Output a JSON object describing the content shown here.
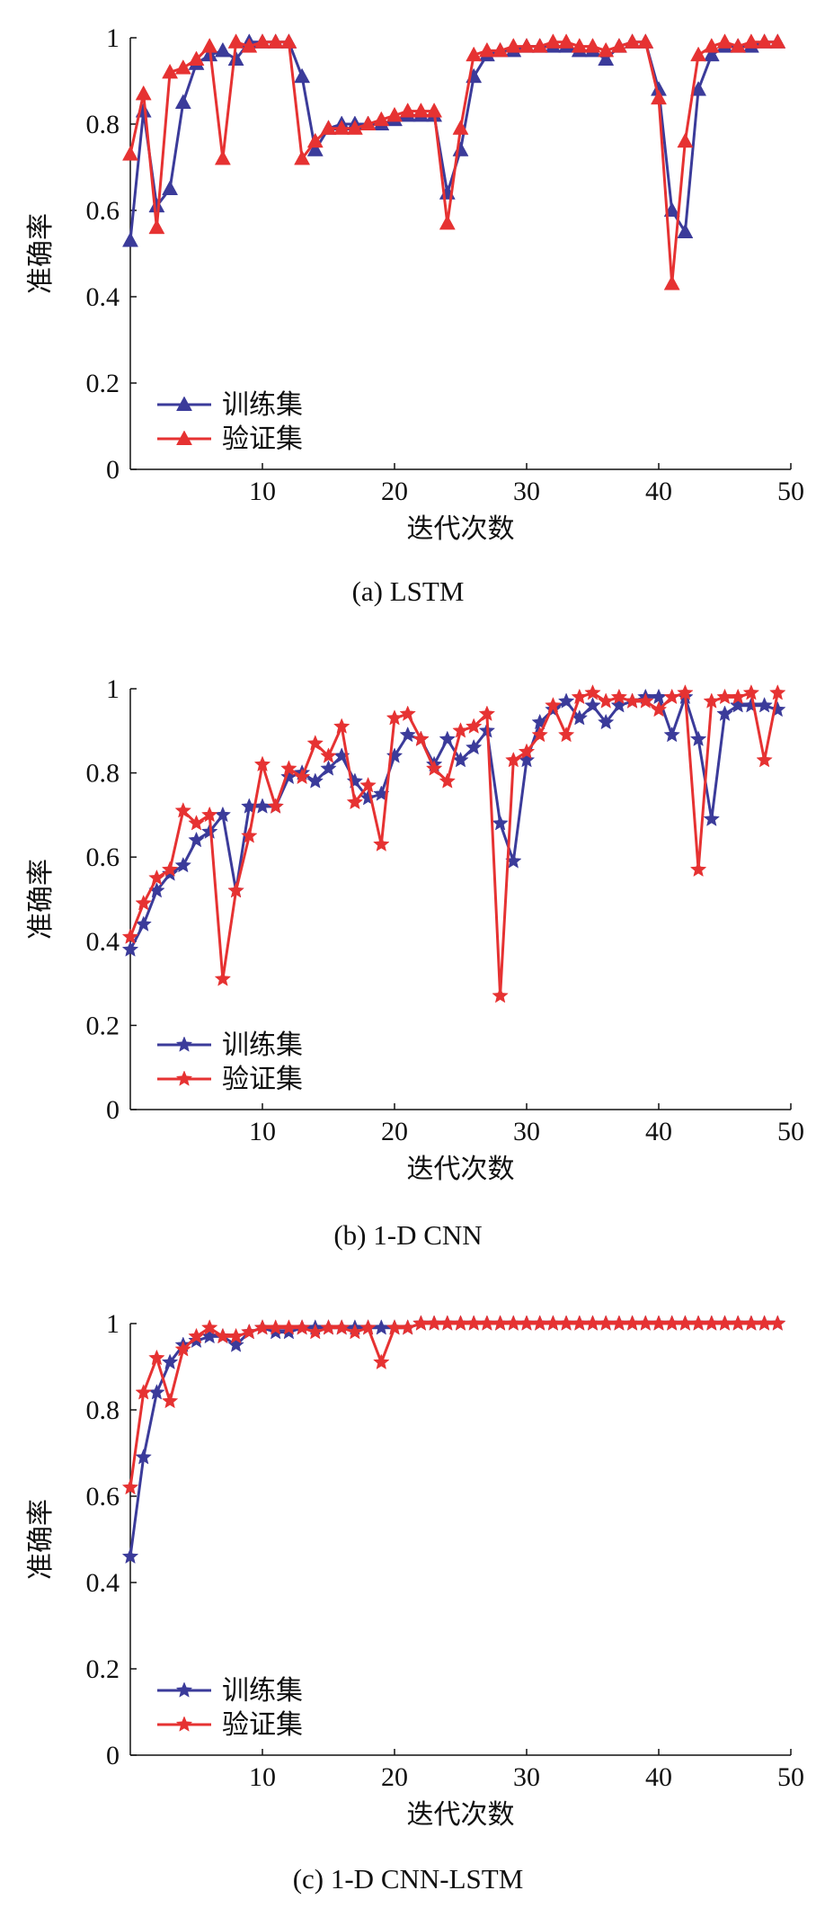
{
  "chart_data": [
    {
      "type": "line",
      "caption": "(a) LSTM",
      "xlabel": "迭代次数",
      "ylabel": "准确率",
      "xlim": [
        0,
        50
      ],
      "ylim": [
        0,
        1
      ],
      "xticks": [
        10,
        20,
        30,
        40,
        50
      ],
      "yticks": [
        0,
        0.2,
        0.4,
        0.6,
        0.8,
        1
      ],
      "marker": "triangle",
      "legend_position": "bottom-left",
      "x": [
        0,
        1,
        2,
        3,
        4,
        5,
        6,
        7,
        8,
        9,
        10,
        11,
        12,
        13,
        14,
        15,
        16,
        17,
        18,
        19,
        20,
        21,
        22,
        23,
        24,
        25,
        26,
        27,
        28,
        29,
        30,
        31,
        32,
        33,
        34,
        35,
        36,
        37,
        38,
        39,
        40,
        41,
        42,
        43,
        44,
        45,
        46,
        47,
        48,
        49
      ],
      "series": [
        {
          "name": "训练集",
          "color": "#3b3b9a",
          "values": [
            0.53,
            0.83,
            0.61,
            0.65,
            0.85,
            0.94,
            0.96,
            0.97,
            0.95,
            0.99,
            0.99,
            0.99,
            0.99,
            0.91,
            0.74,
            0.79,
            0.8,
            0.8,
            0.8,
            0.8,
            0.81,
            0.82,
            0.82,
            0.82,
            0.64,
            0.74,
            0.91,
            0.96,
            0.97,
            0.97,
            0.98,
            0.98,
            0.98,
            0.98,
            0.97,
            0.97,
            0.95,
            0.98,
            0.99,
            0.99,
            0.88,
            0.6,
            0.55,
            0.88,
            0.96,
            0.98,
            0.98,
            0.98,
            0.99,
            0.99
          ]
        },
        {
          "name": "验证集",
          "color": "#e63232",
          "values": [
            0.73,
            0.87,
            0.56,
            0.92,
            0.93,
            0.95,
            0.98,
            0.72,
            0.99,
            0.98,
            0.99,
            0.99,
            0.99,
            0.72,
            0.76,
            0.79,
            0.79,
            0.79,
            0.8,
            0.81,
            0.82,
            0.83,
            0.83,
            0.83,
            0.57,
            0.79,
            0.96,
            0.97,
            0.97,
            0.98,
            0.98,
            0.98,
            0.99,
            0.99,
            0.98,
            0.98,
            0.97,
            0.98,
            0.99,
            0.99,
            0.86,
            0.43,
            0.76,
            0.96,
            0.98,
            0.99,
            0.98,
            0.99,
            0.99,
            0.99
          ]
        }
      ]
    },
    {
      "type": "line",
      "caption": "(b) 1-D CNN",
      "xlabel": "迭代次数",
      "ylabel": "准确率",
      "xlim": [
        0,
        50
      ],
      "ylim": [
        0,
        1
      ],
      "xticks": [
        10,
        20,
        30,
        40,
        50
      ],
      "yticks": [
        0,
        0.2,
        0.4,
        0.6,
        0.8,
        1
      ],
      "marker": "star",
      "legend_position": "bottom-left",
      "x": [
        0,
        1,
        2,
        3,
        4,
        5,
        6,
        7,
        8,
        9,
        10,
        11,
        12,
        13,
        14,
        15,
        16,
        17,
        18,
        19,
        20,
        21,
        22,
        23,
        24,
        25,
        26,
        27,
        28,
        29,
        30,
        31,
        32,
        33,
        34,
        35,
        36,
        37,
        38,
        39,
        40,
        41,
        42,
        43,
        44,
        45,
        46,
        47,
        48,
        49
      ],
      "series": [
        {
          "name": "训练集",
          "color": "#3b3b9a",
          "values": [
            0.38,
            0.44,
            0.52,
            0.56,
            0.58,
            0.64,
            0.66,
            0.7,
            0.52,
            0.72,
            0.72,
            0.72,
            0.79,
            0.8,
            0.78,
            0.81,
            0.84,
            0.78,
            0.74,
            0.75,
            0.84,
            0.89,
            0.88,
            0.82,
            0.88,
            0.83,
            0.86,
            0.9,
            0.68,
            0.59,
            0.83,
            0.92,
            0.95,
            0.97,
            0.93,
            0.96,
            0.92,
            0.96,
            0.97,
            0.98,
            0.98,
            0.89,
            0.98,
            0.88,
            0.69,
            0.94,
            0.96,
            0.96,
            0.96,
            0.95
          ]
        },
        {
          "name": "验证集",
          "color": "#e63232",
          "values": [
            0.41,
            0.49,
            0.55,
            0.57,
            0.71,
            0.68,
            0.7,
            0.31,
            0.52,
            0.65,
            0.82,
            0.72,
            0.81,
            0.79,
            0.87,
            0.84,
            0.91,
            0.73,
            0.77,
            0.63,
            0.93,
            0.94,
            0.88,
            0.81,
            0.78,
            0.9,
            0.91,
            0.94,
            0.27,
            0.83,
            0.85,
            0.89,
            0.96,
            0.89,
            0.98,
            0.99,
            0.97,
            0.98,
            0.97,
            0.97,
            0.95,
            0.98,
            0.99,
            0.57,
            0.97,
            0.98,
            0.98,
            0.99,
            0.83,
            0.99
          ]
        }
      ]
    },
    {
      "type": "line",
      "caption": "(c) 1-D CNN-LSTM",
      "xlabel": "迭代次数",
      "ylabel": "准确率",
      "xlim": [
        0,
        50
      ],
      "ylim": [
        0,
        1
      ],
      "xticks": [
        10,
        20,
        30,
        40,
        50
      ],
      "yticks": [
        0,
        0.2,
        0.4,
        0.6,
        0.8,
        1
      ],
      "marker": "star",
      "legend_position": "bottom-left",
      "x": [
        0,
        1,
        2,
        3,
        4,
        5,
        6,
        7,
        8,
        9,
        10,
        11,
        12,
        13,
        14,
        15,
        16,
        17,
        18,
        19,
        20,
        21,
        22,
        23,
        24,
        25,
        26,
        27,
        28,
        29,
        30,
        31,
        32,
        33,
        34,
        35,
        36,
        37,
        38,
        39,
        40,
        41,
        42,
        43,
        44,
        45,
        46,
        47,
        48,
        49
      ],
      "series": [
        {
          "name": "训练集",
          "color": "#3b3b9a",
          "values": [
            0.46,
            0.69,
            0.84,
            0.91,
            0.95,
            0.96,
            0.97,
            0.97,
            0.95,
            0.98,
            0.99,
            0.98,
            0.98,
            0.99,
            0.99,
            0.99,
            0.99,
            0.99,
            0.99,
            0.99,
            0.99,
            0.99,
            1.0,
            1.0,
            1.0,
            1.0,
            1.0,
            1.0,
            1.0,
            1.0,
            1.0,
            1.0,
            1.0,
            1.0,
            1.0,
            1.0,
            1.0,
            1.0,
            1.0,
            1.0,
            1.0,
            1.0,
            1.0,
            1.0,
            1.0,
            1.0,
            1.0,
            1.0,
            1.0,
            1.0
          ]
        },
        {
          "name": "验证集",
          "color": "#e63232",
          "values": [
            0.62,
            0.84,
            0.92,
            0.82,
            0.94,
            0.97,
            0.99,
            0.97,
            0.97,
            0.98,
            0.99,
            0.99,
            0.99,
            0.99,
            0.98,
            0.99,
            0.99,
            0.98,
            0.99,
            0.91,
            0.99,
            0.99,
            1.0,
            1.0,
            1.0,
            1.0,
            1.0,
            1.0,
            1.0,
            1.0,
            1.0,
            1.0,
            1.0,
            1.0,
            1.0,
            1.0,
            1.0,
            1.0,
            1.0,
            1.0,
            1.0,
            1.0,
            1.0,
            1.0,
            1.0,
            1.0,
            1.0,
            1.0,
            1.0,
            1.0
          ]
        }
      ]
    }
  ]
}
